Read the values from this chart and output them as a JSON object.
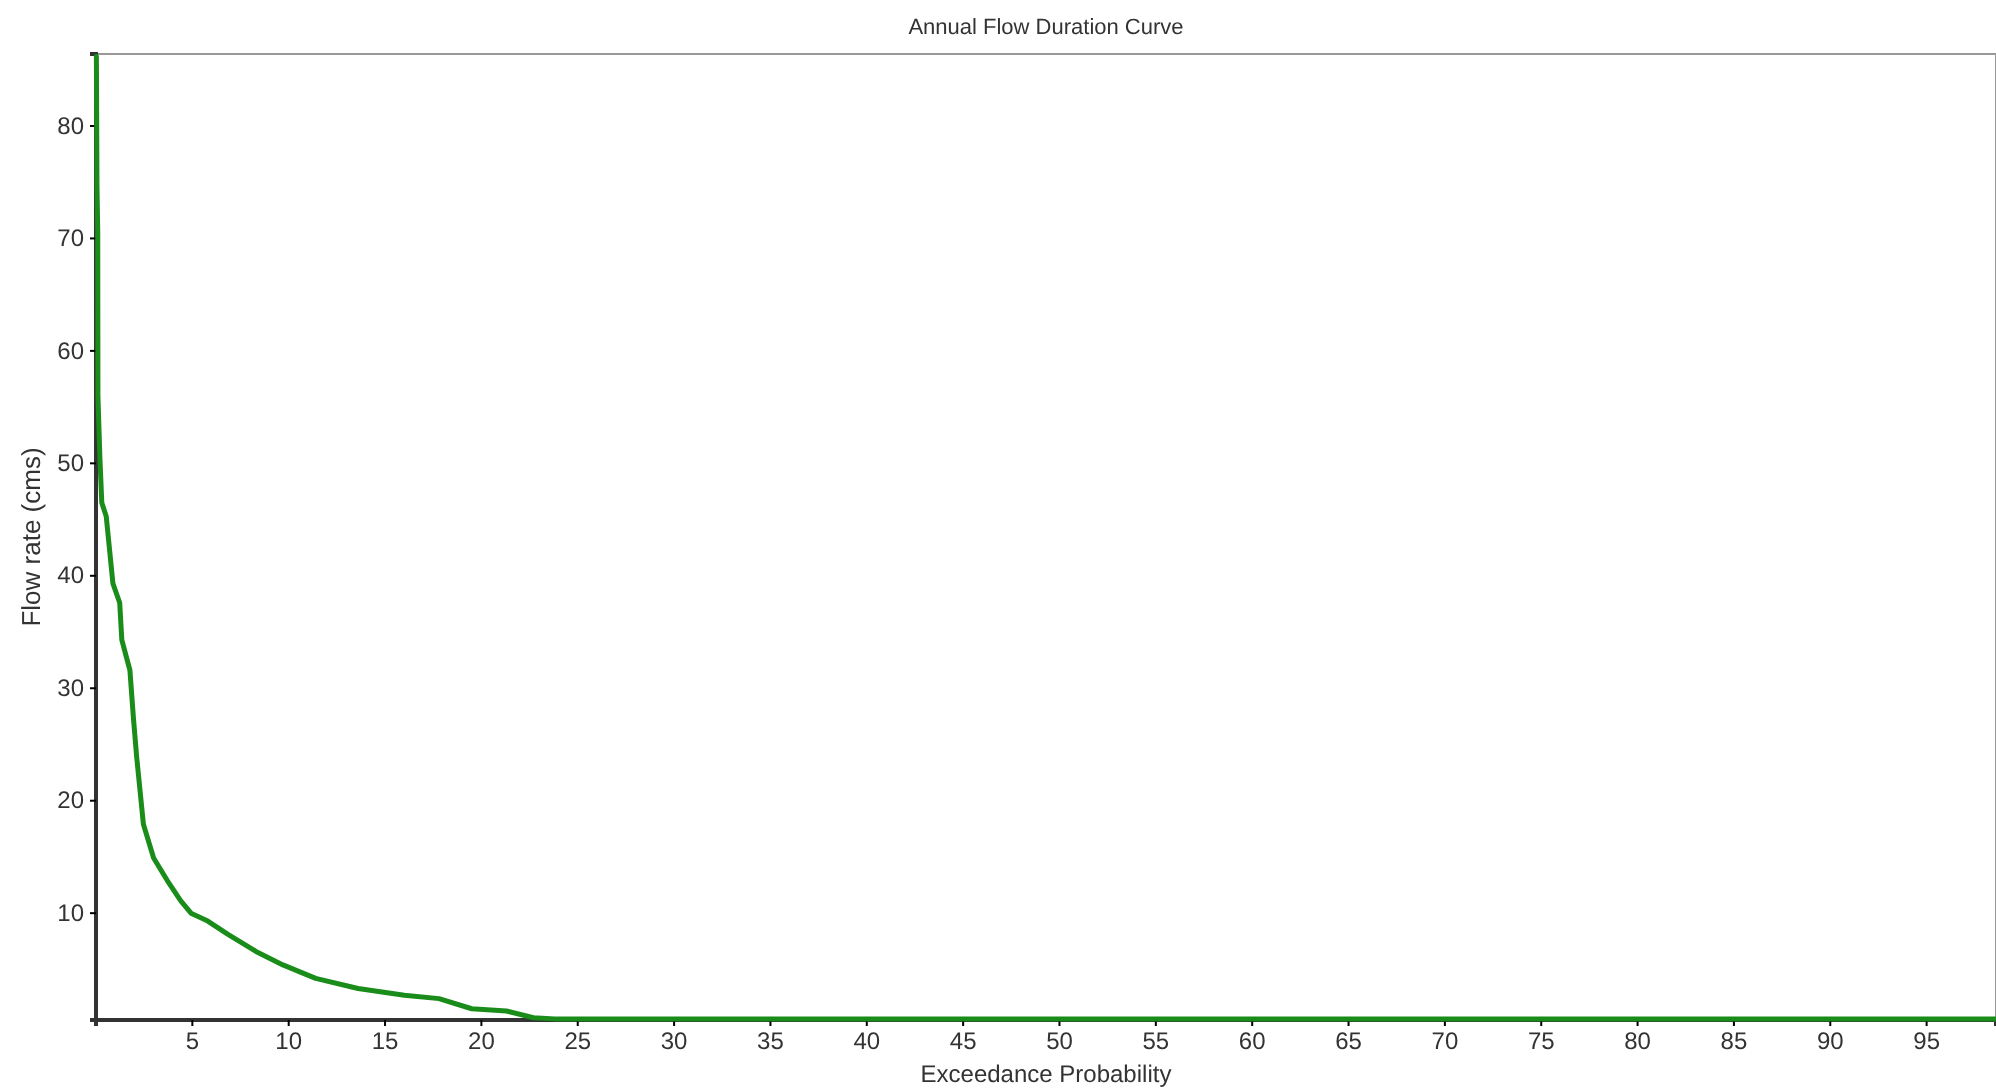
{
  "chart_data": {
    "type": "line",
    "title": "Annual Flow Duration Curve",
    "xlabel": "Exceedance Probability",
    "ylabel": "Flow rate (cms)",
    "xlim": [
      0,
      98.6
    ],
    "ylim": [
      0.5,
      86.4
    ],
    "xticks": [
      5,
      10,
      15,
      20,
      25,
      30,
      35,
      40,
      45,
      50,
      55,
      60,
      65,
      70,
      75,
      80,
      85,
      90,
      95
    ],
    "yticks": [
      10,
      20,
      30,
      40,
      50,
      60,
      70,
      80
    ],
    "grid": false,
    "line_style": "solid",
    "marker": "none",
    "series": [
      {
        "color": "#1a8c1a",
        "x": [
          0.02,
          0.05,
          0.09,
          0.1,
          0.2,
          0.3,
          0.53,
          0.88,
          1.23,
          1.34,
          1.76,
          1.94,
          2.11,
          2.46,
          2.99,
          3.7,
          4.4,
          4.93,
          5.8,
          6.87,
          8.3,
          9.7,
          11.4,
          13.6,
          16,
          17.8,
          19.5,
          21.3,
          22.7,
          23.8,
          30,
          50,
          70,
          98.6
        ],
        "values": [
          86.2,
          74.7,
          70.6,
          56,
          50.6,
          46.5,
          45.3,
          39.3,
          37.6,
          34.3,
          31.6,
          27.4,
          23.9,
          17.9,
          14.9,
          12.9,
          11.1,
          10,
          9.3,
          8.1,
          6.6,
          5.4,
          4.2,
          3.3,
          2.7,
          2.4,
          1.5,
          1.3,
          0.7,
          0.6,
          0.6,
          0.6,
          0.6,
          0.6
        ]
      }
    ]
  }
}
